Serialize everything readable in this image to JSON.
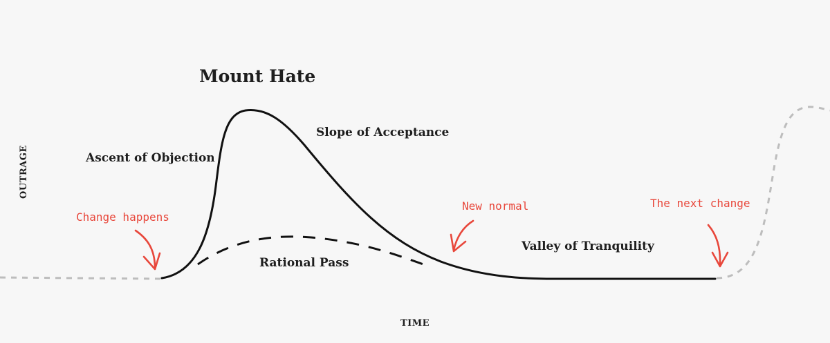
{
  "diagram": {
    "title": "Mount Hate",
    "regions": {
      "ascent": "Ascent of Objection",
      "slope": "Slope of Acceptance",
      "rational": "Rational Pass",
      "valley": "Valley of Tranquility"
    },
    "axes": {
      "y_label": "OUTRAGE",
      "x_label": "TIME"
    },
    "annotations": {
      "change": "Change happens",
      "new_normal": "New normal",
      "next_change": "The next change"
    },
    "colors": {
      "main_curve": "#111111",
      "annotation": "#e8473b",
      "baseline": "#bdbdbd",
      "background": "#f7f7f7"
    }
  }
}
